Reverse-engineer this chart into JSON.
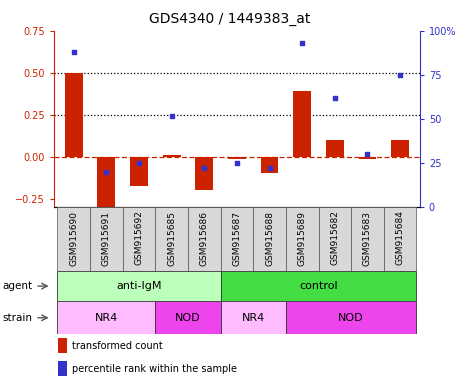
{
  "title": "GDS4340 / 1449383_at",
  "samples": [
    "GSM915690",
    "GSM915691",
    "GSM915692",
    "GSM915685",
    "GSM915686",
    "GSM915687",
    "GSM915688",
    "GSM915689",
    "GSM915682",
    "GSM915683",
    "GSM915684"
  ],
  "transformed_count": [
    0.5,
    -0.3,
    -0.175,
    0.01,
    -0.195,
    -0.01,
    -0.095,
    0.39,
    0.1,
    -0.015,
    0.1
  ],
  "percentile_rank": [
    88,
    20,
    25,
    52,
    22,
    25,
    22,
    93,
    62,
    30,
    75
  ],
  "left_ylim": [
    -0.3,
    0.75
  ],
  "right_ylim": [
    0,
    100
  ],
  "left_yticks": [
    -0.25,
    0.0,
    0.25,
    0.5,
    0.75
  ],
  "right_yticks": [
    0,
    25,
    50,
    75,
    100
  ],
  "bar_color": "#cc2200",
  "dot_color": "#3333cc",
  "hline_color": "#cc2200",
  "dotted_lines": [
    0.25,
    0.5
  ],
  "agent_groups": [
    {
      "label": "anti-IgM",
      "start": 0,
      "end": 5,
      "color": "#bbffbb"
    },
    {
      "label": "control",
      "start": 5,
      "end": 11,
      "color": "#44dd44"
    }
  ],
  "strain_groups": [
    {
      "label": "NR4",
      "start": 0,
      "end": 3,
      "color": "#ffbbff"
    },
    {
      "label": "NOD",
      "start": 3,
      "end": 5,
      "color": "#ee44ee"
    },
    {
      "label": "NR4",
      "start": 5,
      "end": 7,
      "color": "#ffbbff"
    },
    {
      "label": "NOD",
      "start": 7,
      "end": 11,
      "color": "#ee44ee"
    }
  ],
  "agent_label": "agent",
  "strain_label": "strain",
  "legend_bar_label": "transformed count",
  "legend_dot_label": "percentile rank within the sample",
  "bar_width": 0.55,
  "label_fontsize": 6.5,
  "title_fontsize": 10,
  "tick_fontsize": 7,
  "group_fontsize": 8
}
